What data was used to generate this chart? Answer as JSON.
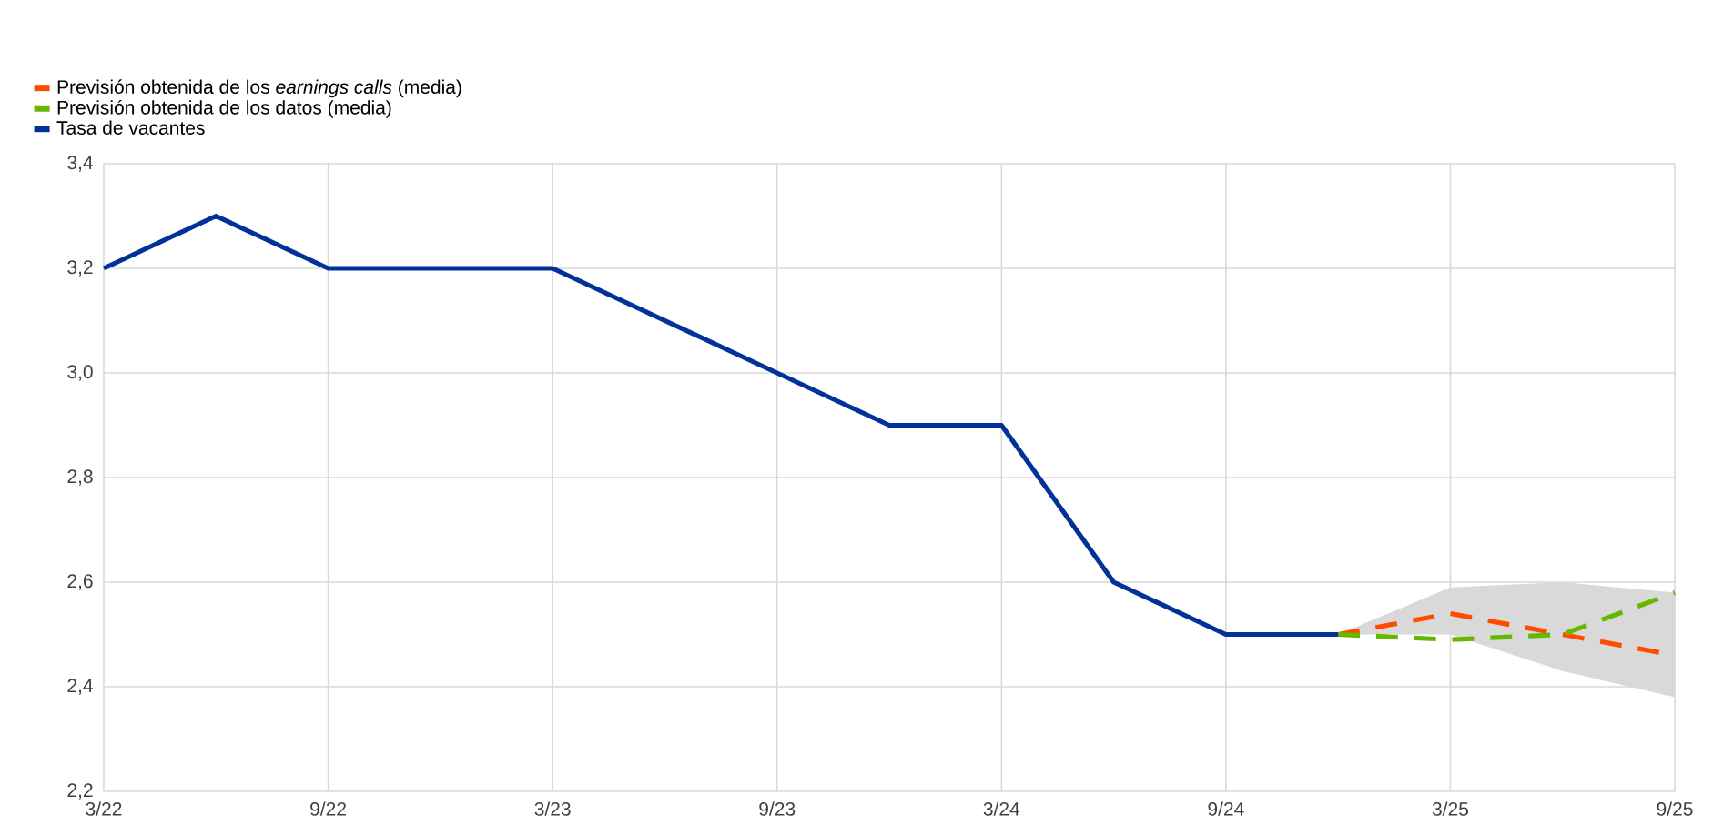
{
  "chart_data": {
    "type": "line",
    "categories": [
      "3/22",
      null,
      "9/22",
      null,
      "3/23",
      null,
      "9/23",
      null,
      "3/24",
      null,
      "9/24",
      null,
      "3/25",
      null,
      "9/25"
    ],
    "series": [
      {
        "name": "Previsión obtenida de los *earnings calls* (media)",
        "color": "#ff4b00",
        "line_style": "dashed",
        "values": [
          null,
          null,
          null,
          null,
          null,
          null,
          null,
          null,
          null,
          null,
          null,
          2.5,
          2.54,
          2.5,
          2.46
        ],
        "lower": [
          null,
          null,
          null,
          null,
          null,
          null,
          null,
          null,
          null,
          null,
          null,
          2.5,
          2.5,
          2.43,
          2.38
        ],
        "upper": [
          null,
          null,
          null,
          null,
          null,
          null,
          null,
          null,
          null,
          null,
          null,
          2.5,
          2.59,
          2.6,
          2.58
        ]
      },
      {
        "name": "Previsión obtenida de los datos (media)",
        "color": "#65b800",
        "line_style": "dashed",
        "values": [
          null,
          null,
          null,
          null,
          null,
          null,
          null,
          null,
          null,
          null,
          null,
          2.5,
          2.49,
          2.5,
          2.58
        ]
      },
      {
        "name": "Tasa de vacantes",
        "color": "#003299",
        "line_style": "solid",
        "values": [
          3.2,
          3.3,
          3.2,
          3.2,
          3.2,
          3.1,
          3.0,
          2.9,
          2.9,
          2.6,
          2.5,
          2.5,
          null,
          null,
          null
        ]
      }
    ],
    "ylim": [
      2.2,
      3.4
    ],
    "yticks": [
      {
        "value": 2.2,
        "label": "2,2"
      },
      {
        "value": 2.4,
        "label": "2,4"
      },
      {
        "value": 2.6,
        "label": "2,6"
      },
      {
        "value": 2.8,
        "label": "2,8"
      },
      {
        "value": 3.0,
        "label": "3,0"
      },
      {
        "value": 3.2,
        "label": "3,2"
      },
      {
        "value": 3.4,
        "label": "3,4"
      }
    ],
    "grid": true,
    "legend": "top left",
    "marker": "none"
  }
}
